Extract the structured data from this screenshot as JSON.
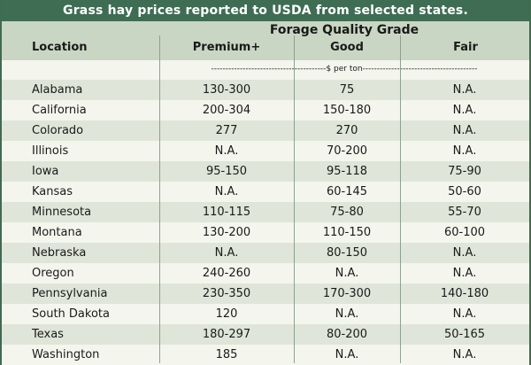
{
  "title": "Grass hay prices reported to USDA from selected states.",
  "header": {
    "group": "Forage Quality Grade",
    "location": "Location",
    "premium": "Premium+",
    "good": "Good",
    "fair": "Fair"
  },
  "units": "----------------------------------------$ per ton----------------------------------------",
  "rows": [
    {
      "location": "Alabama",
      "premium": "130-300",
      "good": "75",
      "fair": "N.A."
    },
    {
      "location": "California",
      "premium": "200-304",
      "good": "150-180",
      "fair": "N.A."
    },
    {
      "location": "Colorado",
      "premium": "277",
      "good": "270",
      "fair": "N.A."
    },
    {
      "location": "Illinois",
      "premium": "N.A.",
      "good": "70-200",
      "fair": "N.A."
    },
    {
      "location": "Iowa",
      "premium": "95-150",
      "good": "95-118",
      "fair": "75-90"
    },
    {
      "location": "Kansas",
      "premium": "N.A.",
      "good": "60-145",
      "fair": "50-60"
    },
    {
      "location": "Minnesota",
      "premium": "110-115",
      "good": "75-80",
      "fair": "55-70"
    },
    {
      "location": "Montana",
      "premium": "130-200",
      "good": "110-150",
      "fair": "60-100"
    },
    {
      "location": "Nebraska",
      "premium": "N.A.",
      "good": "80-150",
      "fair": "N.A."
    },
    {
      "location": "Oregon",
      "premium": "240-260",
      "good": "N.A.",
      "fair": "N.A."
    },
    {
      "location": "Pennsylvania",
      "premium": "230-350",
      "good": "170-300",
      "fair": "140-180"
    },
    {
      "location": "South Dakota",
      "premium": "120",
      "good": "N.A.",
      "fair": "N.A."
    },
    {
      "location": "Texas",
      "premium": "180-297",
      "good": "80-200",
      "fair": "50-165"
    },
    {
      "location": "Washington",
      "premium": "185",
      "good": "N.A.",
      "fair": "N.A."
    }
  ]
}
